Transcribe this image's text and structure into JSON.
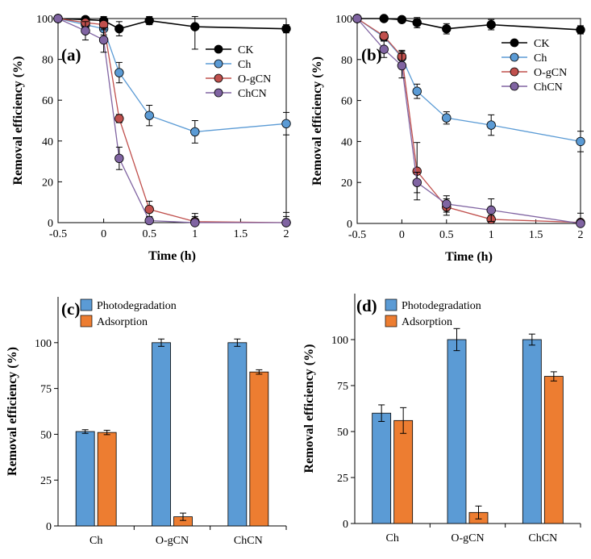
{
  "colors": {
    "CK": "#000000",
    "Ch": "#5b9bd5",
    "O-gCN": "#c0504d",
    "ChCN": "#8064a2",
    "Photodegradation": "#5b9bd5",
    "Adsorption": "#ed7d31"
  },
  "chart_data": [
    {
      "panel": "(a)",
      "type": "line",
      "xlabel": "Time (h)",
      "ylabel": "Removal efficiency (%)",
      "xlim": [
        -0.5,
        2
      ],
      "ylim": [
        0,
        100
      ],
      "xticks": [
        "-0.5",
        "0",
        "0.5",
        "1",
        "1.5",
        "2"
      ],
      "yticks": [
        "0",
        "20",
        "40",
        "60",
        "80",
        "100"
      ],
      "legend_position": "top-right",
      "series": [
        {
          "name": "CK",
          "x": [
            -0.5,
            -0.2,
            0,
            0.17,
            0.5,
            1,
            2
          ],
          "y": [
            100,
            99.5,
            99,
            95,
            99,
            96,
            95
          ],
          "err": [
            0,
            1.5,
            2,
            3.5,
            2,
            11,
            2
          ]
        },
        {
          "name": "Ch",
          "x": [
            -0.5,
            -0.2,
            0,
            0.17,
            0.5,
            1,
            2
          ],
          "y": [
            100,
            97,
            95,
            73.5,
            52.5,
            44.5,
            48.5
          ],
          "err": [
            0,
            2,
            3,
            5,
            5,
            5.5,
            5.5
          ]
        },
        {
          "name": "O-gCN",
          "x": [
            -0.5,
            -0.2,
            0,
            0.17,
            0.5,
            1,
            2
          ],
          "y": [
            100,
            98,
            97,
            51,
            6.5,
            0.5,
            0
          ],
          "err": [
            0,
            2,
            2.5,
            2,
            4,
            4,
            5
          ]
        },
        {
          "name": "ChCN",
          "x": [
            -0.5,
            -0.2,
            0,
            0.17,
            0.5,
            1,
            2
          ],
          "y": [
            100,
            94,
            89.5,
            31.5,
            1,
            0,
            0
          ],
          "err": [
            0,
            4.5,
            6,
            5.5,
            2,
            3,
            3
          ]
        }
      ]
    },
    {
      "panel": "(b)",
      "type": "line",
      "xlabel": "Time (h)",
      "ylabel": "Removal efficiency (%)",
      "xlim": [
        -0.5,
        2
      ],
      "ylim": [
        0,
        100
      ],
      "xticks": [
        "-0.5",
        "0",
        "0.5",
        "1",
        "1.5",
        "2"
      ],
      "yticks": [
        "0",
        "20",
        "40",
        "60",
        "80",
        "100"
      ],
      "legend_position": "top-right",
      "series": [
        {
          "name": "CK",
          "x": [
            -0.5,
            -0.2,
            0,
            0.17,
            0.5,
            1,
            2
          ],
          "y": [
            100,
            100,
            99.5,
            98,
            95,
            97,
            94.5
          ],
          "err": [
            0,
            1,
            1,
            2.5,
            2.5,
            2.5,
            2
          ]
        },
        {
          "name": "Ch",
          "x": [
            -0.5,
            -0.2,
            0,
            0.17,
            0.5,
            1,
            2
          ],
          "y": [
            100,
            91,
            81,
            64.5,
            51.5,
            48,
            40
          ],
          "err": [
            0,
            2,
            3,
            3.5,
            3,
            5,
            5
          ]
        },
        {
          "name": "O-gCN",
          "x": [
            -0.5,
            -0.2,
            0,
            0.17,
            0.5,
            1,
            2
          ],
          "y": [
            100,
            91.5,
            81.5,
            25.5,
            8,
            2,
            0.5
          ],
          "err": [
            0,
            2,
            3,
            14,
            4,
            2,
            1
          ]
        },
        {
          "name": "ChCN",
          "x": [
            -0.5,
            -0.2,
            0,
            0.17,
            0.5,
            1,
            2
          ],
          "y": [
            100,
            85,
            77,
            20,
            9.5,
            6.5,
            0
          ],
          "err": [
            0,
            4,
            6,
            5,
            4,
            5.5,
            5
          ]
        }
      ]
    },
    {
      "panel": "(c)",
      "type": "bar",
      "ylabel": "Removal efficiency (%)",
      "ylim": [
        0,
        125
      ],
      "yticks": [
        "0",
        "25",
        "50",
        "75",
        "100"
      ],
      "categories": [
        "Ch",
        "O-gCN",
        "ChCN"
      ],
      "legend_position": "top-left",
      "series": [
        {
          "name": "Photodegradation",
          "values": [
            51.5,
            100,
            100
          ],
          "err": [
            1,
            2,
            2
          ]
        },
        {
          "name": "Adsorption",
          "values": [
            51,
            5,
            84
          ],
          "err": [
            1.2,
            2,
            1.2
          ]
        }
      ]
    },
    {
      "panel": "(d)",
      "type": "bar",
      "ylabel": "Removal efficiency (%)",
      "ylim": [
        0,
        125
      ],
      "yticks": [
        "0",
        "25",
        "50",
        "75",
        "100"
      ],
      "categories": [
        "Ch",
        "O-gCN",
        "ChCN"
      ],
      "legend_position": "top-left",
      "series": [
        {
          "name": "Photodegradation",
          "values": [
            60,
            100,
            100
          ],
          "err": [
            4.5,
            6,
            3
          ]
        },
        {
          "name": "Adsorption",
          "values": [
            56,
            6,
            80
          ],
          "err": [
            7,
            3.5,
            2.5
          ]
        }
      ]
    }
  ]
}
